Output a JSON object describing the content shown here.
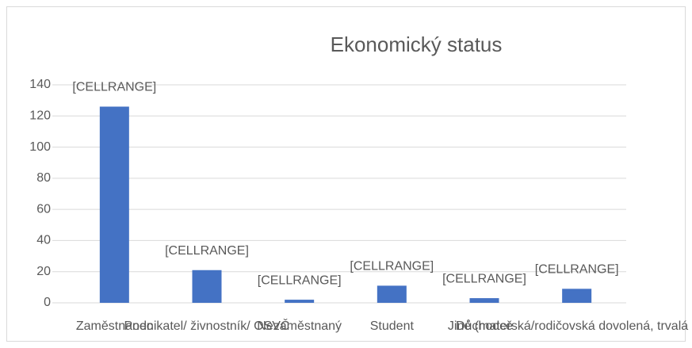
{
  "chart_data": {
    "type": "bar",
    "title": "Ekonomický status",
    "categories": [
      "Zaměstnanec",
      "Podnikatel/ živnostník/ OSVČ",
      "Nezaměstnaný",
      "Student",
      "Důchodce",
      "Jiné (mateřská/rodičovská dovolená, trvalá ne"
    ],
    "values": [
      126,
      21,
      2,
      11,
      3,
      9
    ],
    "value_labels": [
      "[CELLRANGE]",
      "[CELLRANGE]",
      "[CELLRANGE]",
      "[CELLRANGE]",
      "[CELLRANGE]",
      "[CELLRANGE]"
    ],
    "color": "#4472c4",
    "ylim": [
      0,
      140
    ],
    "yticks": [
      0,
      20,
      40,
      60,
      80,
      100,
      120,
      140
    ],
    "grid": true
  }
}
